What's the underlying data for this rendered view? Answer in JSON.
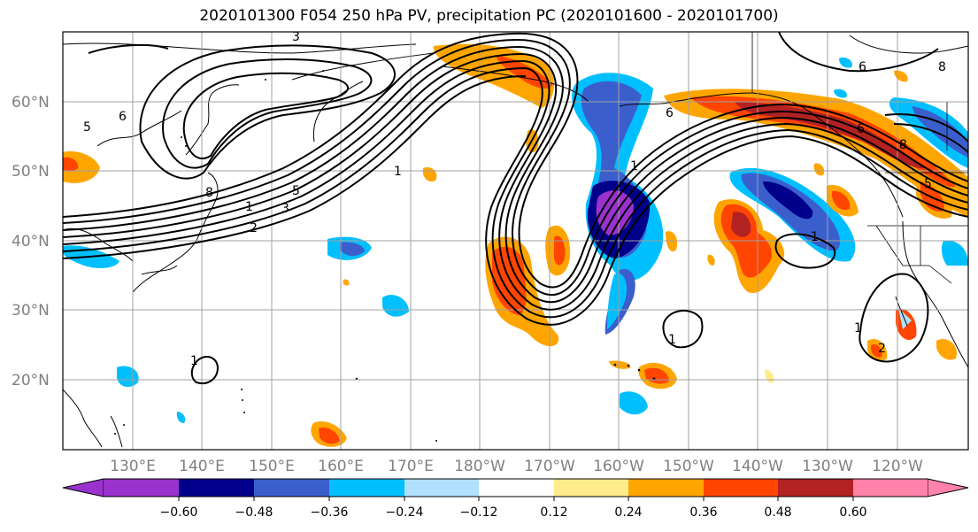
{
  "title": "2020101300 F054 250 hPa PV, precipitation PC (2020101600 - 2020101700)",
  "latitude_labels": [
    "20°N",
    "30°N",
    "40°N",
    "50°N",
    "60°N"
  ],
  "longitude_labels": [
    "130°E",
    "140°E",
    "150°E",
    "160°E",
    "170°E",
    "180°W",
    "170°W",
    "160°W",
    "150°W",
    "140°W",
    "130°W",
    "120°W"
  ],
  "colorbar": {
    "colors": [
      "#9a32cd",
      "#00008b",
      "#3a5fcd",
      "#00bfff",
      "#b0e2ff",
      "#ffffff",
      "#ffec8b",
      "#ffa500",
      "#ff4500",
      "#b22222",
      "#ff82ab"
    ],
    "tick_labels": [
      "−0.60",
      "−0.48",
      "−0.36",
      "−0.24",
      "−0.12",
      "0.12",
      "0.24",
      "0.36",
      "0.48",
      "0.60"
    ]
  },
  "contour_labels": [
    "3",
    "5",
    "6",
    "8",
    "1",
    "2",
    "3",
    "5",
    "1",
    "1",
    "6",
    "8",
    "1",
    "1",
    "2",
    "1",
    "6",
    "8",
    "5",
    "6",
    "1"
  ]
}
